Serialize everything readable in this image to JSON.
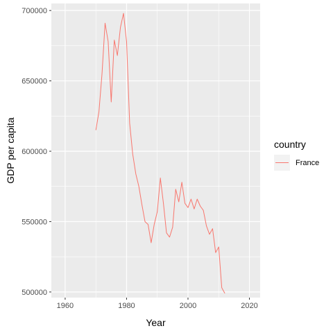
{
  "chart_data": {
    "type": "line",
    "xlabel": "Year",
    "ylabel": "GDP per capita",
    "xlim": [
      1955.5,
      2023.5
    ],
    "ylim": [
      496000,
      705000
    ],
    "x_ticks": [
      1960,
      1980,
      2000,
      2020
    ],
    "x_tick_labels": [
      "1960",
      "1980",
      "2000",
      "2020"
    ],
    "y_ticks": [
      500000,
      550000,
      600000,
      650000,
      700000
    ],
    "y_tick_labels": [
      "500000",
      "550000",
      "600000",
      "650000",
      "700000"
    ],
    "grid": true,
    "legend": {
      "title": "country",
      "placement": "right",
      "entries": [
        "France"
      ]
    },
    "series": [
      {
        "name": "France",
        "color": "#F8766D",
        "x": [
          1970,
          1971,
          1972,
          1973,
          1974,
          1975,
          1976,
          1977,
          1978,
          1979,
          1980,
          1981,
          1982,
          1983,
          1984,
          1985,
          1986,
          1987,
          1988,
          1989,
          1990,
          1991,
          1992,
          1993,
          1994,
          1995,
          1996,
          1997,
          1998,
          1999,
          2000,
          2001,
          2002,
          2003,
          2004,
          2005,
          2006,
          2007,
          2008,
          2009,
          2010,
          2011,
          2012
        ],
        "y": [
          615000,
          628000,
          655000,
          691000,
          678000,
          635000,
          679000,
          668000,
          688000,
          698000,
          678000,
          620000,
          598000,
          584000,
          575000,
          562000,
          550000,
          548000,
          535000,
          548000,
          557000,
          581000,
          563000,
          542000,
          539000,
          546000,
          573000,
          564000,
          578000,
          563000,
          560000,
          566000,
          559000,
          566000,
          561000,
          558000,
          547000,
          541000,
          545000,
          528000,
          532000,
          503000,
          499000
        ]
      }
    ]
  }
}
